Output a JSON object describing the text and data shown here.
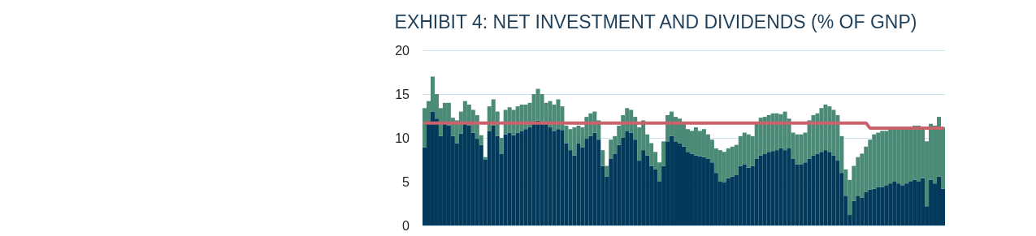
{
  "chart_data": {
    "type": "bar",
    "title": "EXHIBIT 4: NET INVESTMENT AND DIVIDENDS (% OF GNP)",
    "stacked": true,
    "grid": "y",
    "ylim": [
      0,
      20
    ],
    "yticks": [
      0,
      5,
      10,
      15,
      20
    ],
    "categories": [
      null,
      null,
      null,
      null,
      null,
      null,
      null,
      null,
      null,
      null,
      null,
      null,
      null,
      null,
      null,
      null,
      null,
      null,
      null,
      null,
      null,
      null,
      null,
      null,
      null,
      null,
      null,
      null,
      null,
      null,
      null,
      null,
      null,
      null,
      null,
      null,
      null,
      null,
      null,
      null,
      null,
      null,
      null,
      null,
      null,
      null,
      null,
      null,
      null,
      null,
      null,
      null,
      null,
      null,
      null,
      null,
      null,
      null,
      null,
      null,
      null,
      null,
      null,
      null,
      null,
      null,
      null,
      null,
      null,
      null,
      null,
      null,
      null,
      null,
      null,
      null,
      null,
      null,
      null,
      null,
      null,
      null,
      null,
      null,
      null,
      null,
      null,
      null,
      null,
      null,
      null,
      null,
      null,
      null,
      null,
      null,
      null,
      null,
      null,
      null,
      null,
      null,
      null,
      null,
      null,
      null,
      null,
      null,
      null,
      null,
      null,
      null,
      null,
      null,
      null,
      null,
      null,
      null,
      null,
      null,
      null,
      null,
      null,
      null,
      null,
      null,
      null,
      null,
      null
    ],
    "series": [
      {
        "color": "#03395a",
        "values": [
          8.9,
          11.6,
          13.0,
          12.2,
          10.2,
          11.6,
          11.4,
          10.2,
          9.4,
          10.5,
          11.6,
          11.4,
          10.6,
          9.9,
          9.2,
          7.5,
          10.8,
          11.4,
          10.2,
          8.2,
          10.4,
          10.6,
          10.3,
          10.6,
          10.8,
          11.0,
          11.2,
          11.8,
          12.0,
          11.9,
          11.6,
          11.2,
          10.8,
          11.0,
          10.9,
          9.4,
          8.6,
          8.0,
          9.4,
          8.9,
          9.9,
          10.2,
          10.6,
          9.8,
          6.8,
          5.6,
          7.6,
          8.2,
          9.2,
          10.0,
          10.8,
          10.6,
          9.8,
          7.4,
          8.6,
          8.0,
          6.8,
          6.4,
          5.0,
          6.8,
          9.6,
          10.2,
          9.6,
          9.4,
          9.0,
          8.4,
          8.2,
          8.0,
          7.9,
          7.8,
          7.6,
          7.2,
          6.0,
          5.0,
          4.9,
          5.4,
          5.6,
          5.8,
          6.8,
          7.0,
          6.6,
          6.8,
          7.6,
          8.0,
          8.2,
          8.4,
          8.5,
          8.6,
          8.8,
          8.6,
          8.8,
          7.6,
          7.0,
          7.0,
          7.2,
          7.6,
          8.0,
          8.2,
          8.4,
          8.6,
          8.4,
          8.0,
          7.4,
          6.0,
          3.4,
          1.2,
          2.8,
          3.4,
          3.2,
          3.8,
          4.1,
          4.2,
          4.4,
          4.4,
          4.6,
          4.8,
          5.0,
          4.8,
          4.6,
          4.8,
          5.0,
          5.2,
          5.0,
          5.4,
          2.2,
          5.2,
          4.8,
          5.6,
          4.2
        ]
      },
      {
        "color": "#4a8a77",
        "values": [
          4.5,
          2.6,
          4.0,
          2.8,
          3.2,
          2.4,
          2.6,
          2.1,
          2.6,
          2.5,
          2.6,
          2.4,
          2.6,
          2.7,
          1.1,
          0.3,
          2.8,
          3.0,
          2.8,
          1.8,
          2.8,
          2.9,
          2.9,
          3.0,
          3.0,
          2.8,
          2.8,
          3.2,
          3.6,
          3.1,
          2.4,
          3.0,
          3.0,
          3.4,
          2.7,
          2.0,
          2.4,
          3.2,
          2.0,
          2.3,
          2.5,
          2.6,
          2.4,
          2.2,
          1.8,
          1.2,
          2.2,
          2.0,
          2.2,
          2.6,
          2.6,
          2.6,
          2.6,
          3.8,
          3.4,
          2.4,
          2.6,
          2.0,
          2.2,
          2.8,
          3.0,
          2.8,
          2.8,
          2.8,
          2.8,
          2.6,
          2.6,
          3.2,
          2.9,
          3.2,
          2.8,
          2.6,
          2.8,
          3.6,
          3.5,
          3.4,
          3.4,
          3.4,
          3.4,
          3.6,
          3.8,
          3.4,
          4.2,
          4.3,
          4.2,
          4.2,
          4.3,
          4.2,
          3.9,
          4.4,
          3.4,
          3.0,
          3.4,
          3.4,
          3.4,
          4.4,
          4.6,
          4.6,
          5.0,
          5.2,
          5.2,
          5.2,
          5.2,
          4.2,
          3.0,
          4.0,
          4.0,
          4.4,
          5.0,
          5.2,
          5.7,
          6.2,
          6.2,
          6.4,
          6.2,
          6.2,
          6.0,
          6.2,
          6.4,
          6.4,
          6.2,
          6.2,
          6.4,
          5.8,
          7.4,
          6.4,
          6.6,
          6.8,
          7.0
        ]
      },
      {
        "type": "line",
        "color": "#c8636b",
        "values": [
          11.7,
          11.7,
          11.7,
          11.7,
          11.7,
          11.7,
          11.7,
          11.7,
          11.7,
          11.7,
          11.7,
          11.7,
          11.7,
          11.7,
          11.7,
          11.7,
          11.7,
          11.7,
          11.7,
          11.7,
          11.7,
          11.7,
          11.7,
          11.7,
          11.7,
          11.7,
          11.7,
          11.7,
          11.7,
          11.7,
          11.7,
          11.7,
          11.7,
          11.7,
          11.7,
          11.7,
          11.7,
          11.7,
          11.7,
          11.7,
          11.7,
          11.7,
          11.7,
          11.7,
          11.7,
          11.7,
          11.7,
          11.7,
          11.7,
          11.7,
          11.7,
          11.7,
          11.7,
          11.7,
          11.7,
          11.7,
          11.7,
          11.7,
          11.7,
          11.7,
          11.7,
          11.7,
          11.7,
          11.7,
          11.7,
          11.7,
          11.7,
          11.7,
          11.7,
          11.7,
          11.7,
          11.7,
          11.7,
          11.7,
          11.7,
          11.7,
          11.7,
          11.7,
          11.7,
          11.7,
          11.7,
          11.7,
          11.7,
          11.7,
          11.7,
          11.7,
          11.7,
          11.7,
          11.7,
          11.7,
          11.7,
          11.7,
          11.7,
          11.7,
          11.7,
          11.7,
          11.7,
          11.7,
          11.7,
          11.7,
          11.7,
          11.7,
          11.7,
          11.7,
          11.7,
          11.7,
          11.7,
          11.7,
          11.7,
          11.7,
          11.1,
          11.1,
          11.1,
          11.1,
          11.1,
          11.1,
          11.1,
          11.1,
          11.1,
          11.1,
          11.1,
          11.1,
          11.1,
          11.1,
          11.1,
          11.1,
          11.1,
          11.1,
          11.1
        ]
      }
    ]
  }
}
